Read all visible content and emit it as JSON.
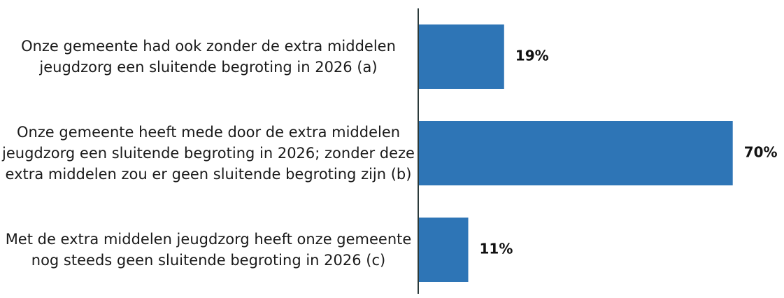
{
  "chart_data": {
    "type": "hbar",
    "categories": [
      "Onze gemeente had ook zonder de extra middelen jeugdzorg een sluitende begroting in 2026 (a)",
      "Onze gemeente heeft mede door de extra middelen jeugdzorg een sluitende begroting in 2026; zonder deze extra middelen zou er geen sluitende begroting zijn (b)",
      "Met de extra middelen jeugdzorg heeft onze gemeente nog steeds geen sluitende begroting in 2026 (c)"
    ],
    "values": [
      19,
      70,
      11
    ],
    "value_labels": [
      "19%",
      "70%",
      "11%"
    ],
    "color": "#2e75b6"
  }
}
